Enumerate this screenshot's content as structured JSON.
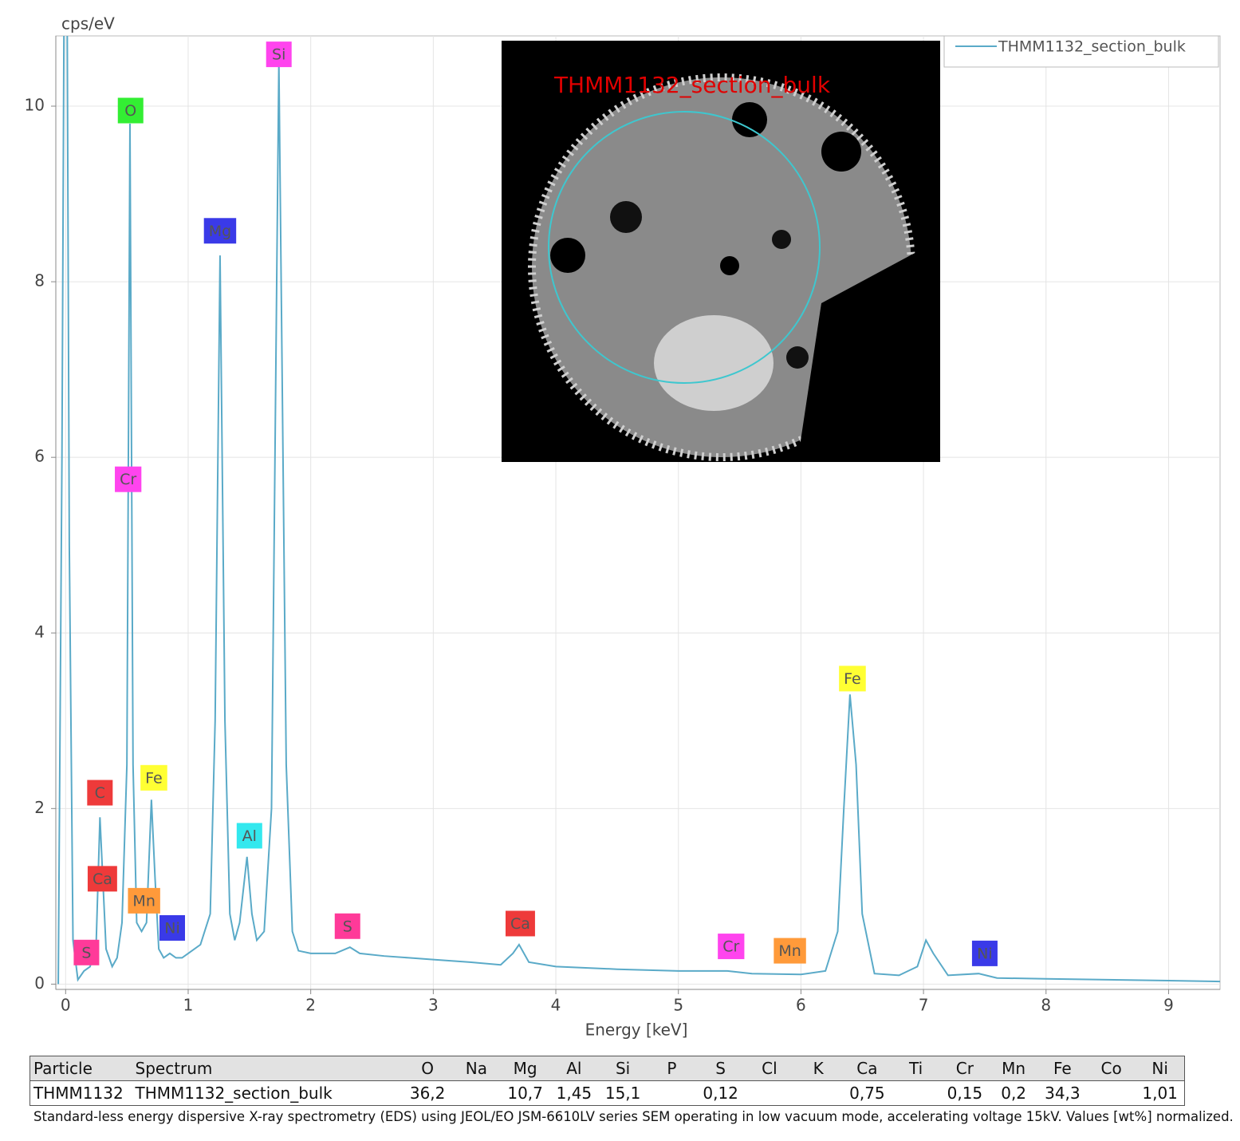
{
  "chart_data": {
    "type": "line",
    "y_label": "cps/eV",
    "x_label": "Energy [keV]",
    "xlim": [
      -0.08,
      9.42
    ],
    "ylim": [
      -0.06,
      10.8
    ],
    "xticks": [
      0,
      1,
      2,
      3,
      4,
      5,
      6,
      7,
      8,
      9
    ],
    "yticks": [
      0,
      2,
      4,
      6,
      8,
      10
    ],
    "grid": true,
    "legend": "top-right",
    "x": [
      -0.06,
      -0.03,
      -0.01,
      0.01,
      0.03,
      0.06,
      0.1,
      0.15,
      0.2,
      0.25,
      0.28,
      0.3,
      0.33,
      0.38,
      0.42,
      0.46,
      0.5,
      0.525,
      0.55,
      0.58,
      0.62,
      0.66,
      0.7,
      0.73,
      0.76,
      0.8,
      0.85,
      0.9,
      0.95,
      1.0,
      1.1,
      1.18,
      1.22,
      1.26,
      1.3,
      1.34,
      1.38,
      1.42,
      1.48,
      1.52,
      1.56,
      1.62,
      1.68,
      1.74,
      1.8,
      1.85,
      1.9,
      2.0,
      2.2,
      2.32,
      2.4,
      2.6,
      2.8,
      3.0,
      3.3,
      3.55,
      3.65,
      3.7,
      3.78,
      4.0,
      4.5,
      5.0,
      5.4,
      5.6,
      6.0,
      6.2,
      6.3,
      6.35,
      6.4,
      6.45,
      6.5,
      6.6,
      6.8,
      6.95,
      7.02,
      7.08,
      7.2,
      7.45,
      7.6,
      8.0,
      9.0,
      9.42
    ],
    "series": [
      {
        "name": "THMM1132_section_bulk",
        "color": "#5aaac8",
        "values": [
          0,
          6,
          12,
          12,
          5,
          0.5,
          0.05,
          0.15,
          0.2,
          0.5,
          1.9,
          1.3,
          0.4,
          0.2,
          0.3,
          0.7,
          2.5,
          9.8,
          2.5,
          0.7,
          0.6,
          0.7,
          2.1,
          1.2,
          0.4,
          0.3,
          0.35,
          0.3,
          0.3,
          0.35,
          0.45,
          0.8,
          3,
          8.3,
          3,
          0.8,
          0.5,
          0.7,
          1.45,
          0.8,
          0.5,
          0.6,
          2,
          10.5,
          2.5,
          0.6,
          0.38,
          0.35,
          0.35,
          0.42,
          0.35,
          0.32,
          0.3,
          0.28,
          0.25,
          0.22,
          0.35,
          0.45,
          0.25,
          0.2,
          0.17,
          0.15,
          0.15,
          0.12,
          0.11,
          0.15,
          0.6,
          2,
          3.3,
          2.5,
          0.8,
          0.12,
          0.1,
          0.2,
          0.5,
          0.35,
          0.1,
          0.12,
          0.07,
          0.06,
          0.04,
          0.03
        ]
      }
    ],
    "peak_labels": [
      {
        "text": "Si",
        "color": "#ff44ee",
        "x": 1.74,
        "y": 10.59
      },
      {
        "text": "O",
        "color": "#33ee33",
        "x": 0.53,
        "y": 9.95
      },
      {
        "text": "Mg",
        "color": "#3a3ae8",
        "x": 1.26,
        "y": 8.58
      },
      {
        "text": "Cr",
        "color": "#ff44ee",
        "x": 0.51,
        "y": 5.75
      },
      {
        "text": "Fe",
        "color": "#ffff33",
        "x": 6.42,
        "y": 3.48
      },
      {
        "text": "Fe",
        "color": "#ffff33",
        "x": 0.72,
        "y": 2.35
      },
      {
        "text": "C",
        "color": "#ee3a3a",
        "x": 0.28,
        "y": 2.18
      },
      {
        "text": "Al",
        "color": "#33e8ee",
        "x": 1.5,
        "y": 1.69
      },
      {
        "text": "Ca",
        "color": "#ee3a3a",
        "x": 0.3,
        "y": 1.2
      },
      {
        "text": "Mn",
        "color": "#ff9a3a",
        "x": 0.64,
        "y": 0.95
      },
      {
        "text": "Ni",
        "color": "#3a3ae8",
        "x": 0.87,
        "y": 0.64
      },
      {
        "text": "S",
        "color": "#ff3a99",
        "x": 0.17,
        "y": 0.36
      },
      {
        "text": "S",
        "color": "#ff3a99",
        "x": 2.3,
        "y": 0.66
      },
      {
        "text": "Ca",
        "color": "#ee3a3a",
        "x": 3.71,
        "y": 0.69
      },
      {
        "text": "Cr",
        "color": "#ff44ee",
        "x": 5.43,
        "y": 0.43
      },
      {
        "text": "Mn",
        "color": "#ff9a3a",
        "x": 5.91,
        "y": 0.38
      },
      {
        "text": "Ni",
        "color": "#3a3ae8",
        "x": 7.5,
        "y": 0.35
      }
    ],
    "inset_label": "THMM1132_section_bulk"
  },
  "table": {
    "header": [
      "Particle",
      "Spectrum",
      "O",
      "Na",
      "Mg",
      "Al",
      "Si",
      "P",
      "S",
      "Cl",
      "K",
      "Ca",
      "Ti",
      "Cr",
      "Mn",
      "Fe",
      "Co",
      "Ni"
    ],
    "rows": [
      [
        "THMM1132",
        "THMM1132_section_bulk",
        "36,2",
        null,
        "10,7",
        "1,45",
        "15,1",
        null,
        "0,12",
        null,
        null,
        "0,75",
        null,
        "0,15",
        "0,2",
        "34,3",
        null,
        "1,01"
      ]
    ]
  },
  "caption": "Standard-less energy dispersive X-ray spectrometry (EDS) using JEOL/EO JSM-6610LV series SEM operating in low vacuum mode, accelerating voltage 15kV. Values [wt%] normalized."
}
